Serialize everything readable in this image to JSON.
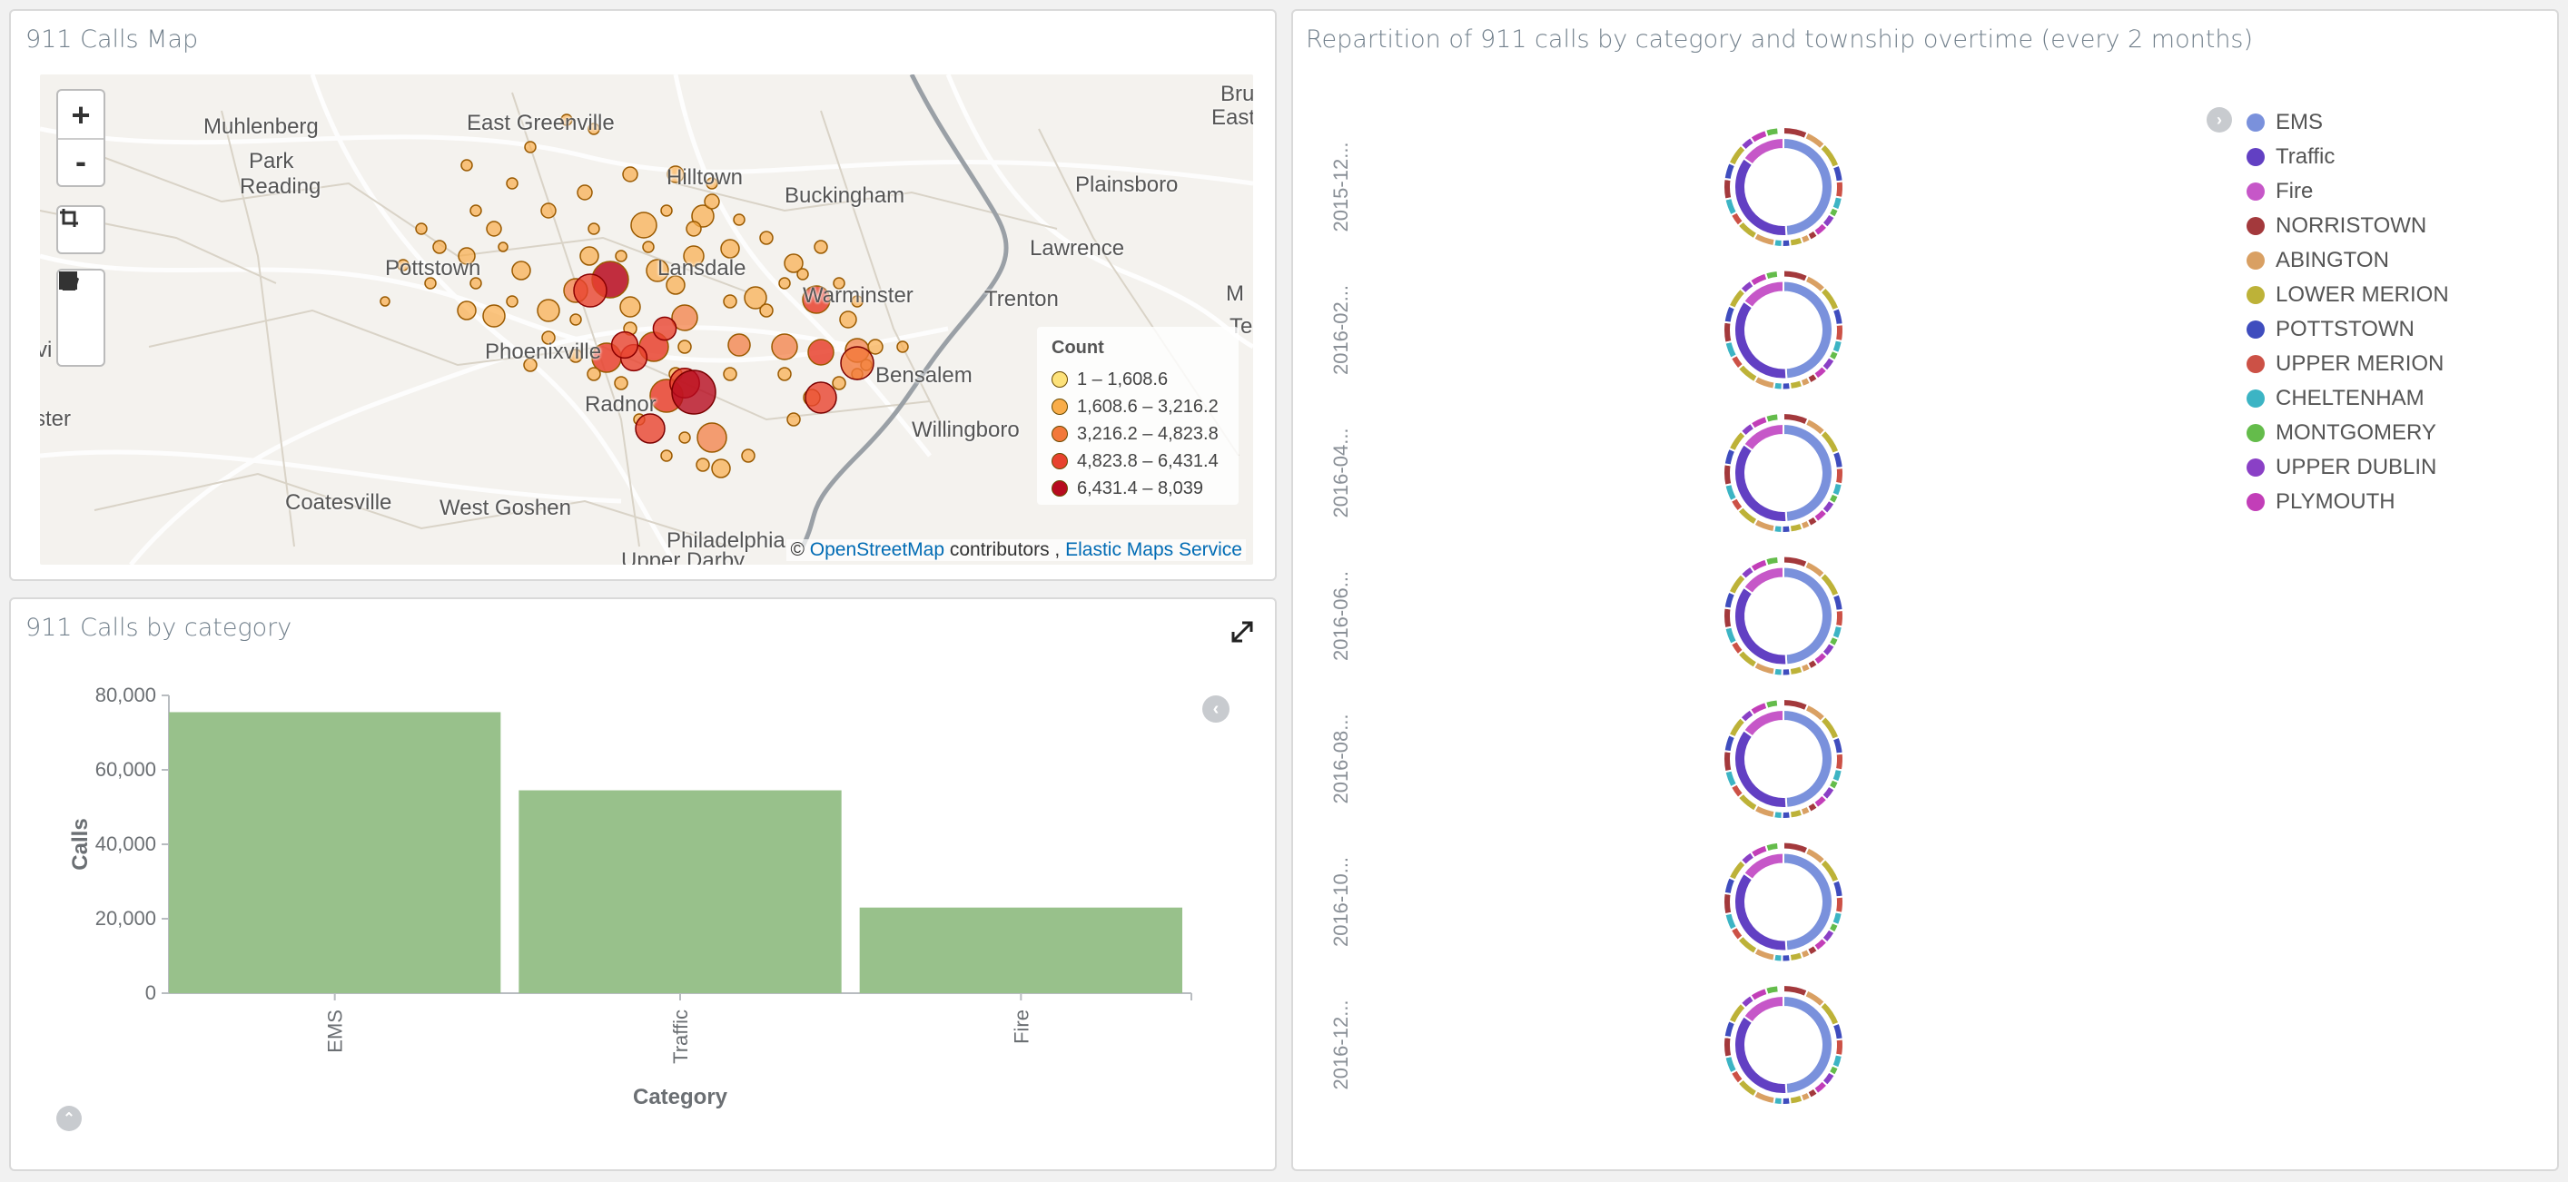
{
  "map_panel": {
    "title": "911 Calls Map",
    "zoom_in": "+",
    "zoom_out": "-",
    "places": [
      {
        "name": "Muhlenberg"
      },
      {
        "name": "Park"
      },
      {
        "name": "Reading"
      },
      {
        "name": "East Greenville"
      },
      {
        "name": "Hilltown"
      },
      {
        "name": "Buckingham"
      },
      {
        "name": "Plainsboro"
      },
      {
        "name": "Lawrence"
      },
      {
        "name": "Pottstown"
      },
      {
        "name": "Lansdale"
      },
      {
        "name": "Warminster"
      },
      {
        "name": "Trenton"
      },
      {
        "name": "Phoenixville"
      },
      {
        "name": "Bensalem"
      },
      {
        "name": "Radnor"
      },
      {
        "name": "Willingboro"
      },
      {
        "name": "Coatesville"
      },
      {
        "name": "West Goshen"
      },
      {
        "name": "Philadelphia"
      },
      {
        "name": "Upper Darby"
      },
      {
        "name": "East"
      },
      {
        "name": "Bru"
      },
      {
        "name": "vi"
      },
      {
        "name": "ster"
      },
      {
        "name": "M"
      },
      {
        "name": "Te"
      }
    ],
    "legend": {
      "title": "Count",
      "items": [
        {
          "label": "1 – 1,608.6",
          "color": "#fde27a"
        },
        {
          "label": "1,608.6 – 3,216.2",
          "color": "#f9ad4a"
        },
        {
          "label": "3,216.2 – 4,823.8",
          "color": "#f2783a"
        },
        {
          "label": "4,823.8 – 6,431.4",
          "color": "#e8422e"
        },
        {
          "label": "6,431.4 – 8,039",
          "color": "#b70b1f"
        }
      ]
    },
    "attribution": {
      "prefix": "© ",
      "osm": "OpenStreetMap",
      "mid": " contributors , ",
      "ems": "Elastic Maps Service"
    }
  },
  "bar_panel": {
    "title": "911 Calls by category",
    "chart_data": {
      "type": "bar",
      "title": "911 Calls by category",
      "xlabel": "Category",
      "ylabel": "Calls",
      "categories": [
        "EMS",
        "Traffic",
        "Fire"
      ],
      "values": [
        75500,
        54500,
        23000
      ],
      "ylim": [
        0,
        80000
      ],
      "yticks": [
        "0",
        "20,000",
        "40,000",
        "60,000",
        "80,000"
      ],
      "color": "#98c18b"
    }
  },
  "pie_panel": {
    "title": "Repartition of 911 calls by category and township overtime (every 2 months)",
    "rows": [
      "2015-12...",
      "2016-02...",
      "2016-04...",
      "2016-06...",
      "2016-08...",
      "2016-10...",
      "2016-12..."
    ],
    "legend": [
      {
        "label": "EMS",
        "color": "#7a91dc"
      },
      {
        "label": "Traffic",
        "color": "#6240c3"
      },
      {
        "label": "Fire",
        "color": "#c657c8"
      },
      {
        "label": "NORRISTOWN",
        "color": "#a3393c"
      },
      {
        "label": "ABINGTON",
        "color": "#d9a063"
      },
      {
        "label": "LOWER MERION",
        "color": "#bdb238"
      },
      {
        "label": "POTTSTOWN",
        "color": "#3f4dbe"
      },
      {
        "label": "UPPER MERION",
        "color": "#cc5146"
      },
      {
        "label": "CHELTENHAM",
        "color": "#3cb4c4"
      },
      {
        "label": "MONTGOMERY",
        "color": "#64bc4b"
      },
      {
        "label": "UPPER DUBLIN",
        "color": "#8a40c6"
      },
      {
        "label": "PLYMOUTH",
        "color": "#c23eb8"
      }
    ]
  }
}
